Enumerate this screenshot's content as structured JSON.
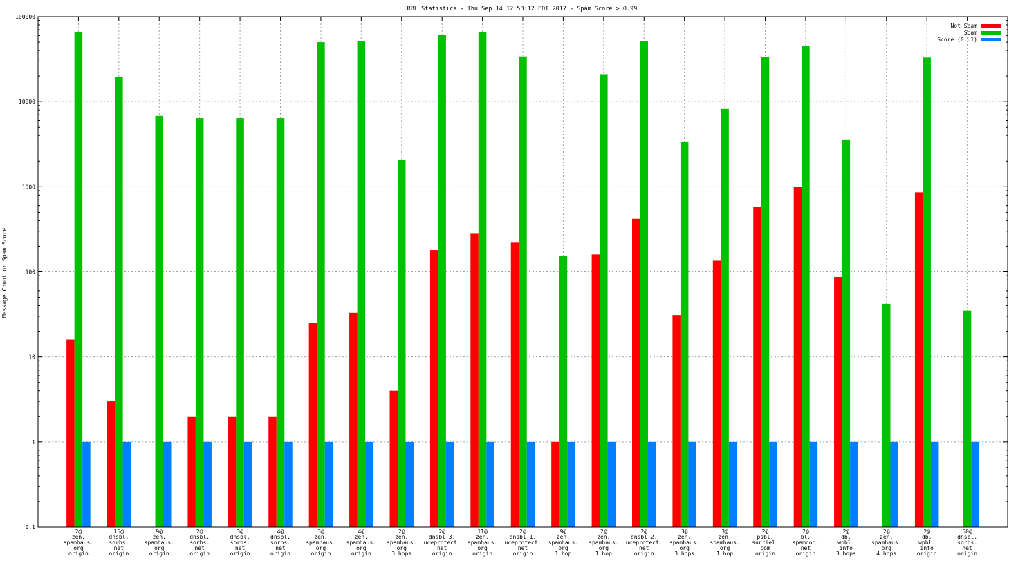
{
  "chart_data": {
    "type": "bar",
    "title": "RBL Statistics - Thu Sep 14 12:58:12 EDT 2017 - Spam Score > 0.99",
    "ylabel": "Message Count or Spam Score",
    "xlabel": "",
    "yscale": "log",
    "ylim": [
      0.1,
      100000
    ],
    "yticks": [
      {
        "value": 0.1,
        "label": "0.1"
      },
      {
        "value": 1,
        "label": "1"
      },
      {
        "value": 10,
        "label": "10"
      },
      {
        "value": 100,
        "label": "100"
      },
      {
        "value": 1000,
        "label": "1000"
      },
      {
        "value": 10000,
        "label": "10000"
      },
      {
        "value": 100000,
        "label": "100000"
      }
    ],
    "grid": true,
    "legend_position": "top-right",
    "categories": [
      [
        "2@",
        "zen.",
        "spamhaus.",
        "org",
        "origin"
      ],
      [
        "15@",
        "dnsbl.",
        "sorbs.",
        "net",
        "origin"
      ],
      [
        "9@",
        "zen.",
        "spamhaus.",
        "org",
        "origin"
      ],
      [
        "2@",
        "dnsbl.",
        "sorbs.",
        "net",
        "origin"
      ],
      [
        "3@",
        "dnsbl.",
        "sorbs.",
        "net",
        "origin"
      ],
      [
        "4@",
        "dnsbl.",
        "sorbs.",
        "net",
        "origin"
      ],
      [
        "3@",
        "zen.",
        "spamhaus.",
        "org",
        "origin"
      ],
      [
        "4@",
        "zen.",
        "spamhaus.",
        "org",
        "origin"
      ],
      [
        "2@",
        "zen.",
        "spamhaus.",
        "org",
        "3 hops"
      ],
      [
        "2@",
        "dnsbl-3.",
        "uceprotect.",
        "net",
        "origin"
      ],
      [
        "11@",
        "zen.",
        "spamhaus.",
        "org",
        "origin"
      ],
      [
        "2@",
        "dnsbl-1.",
        "uceprotect.",
        "net",
        "origin"
      ],
      [
        "9@",
        "zen.",
        "spamhaus.",
        "org",
        "1 hop"
      ],
      [
        "2@",
        "zen.",
        "spamhaus.",
        "org",
        "1 hop"
      ],
      [
        "2@",
        "dnsbl-2.",
        "uceprotect.",
        "net",
        "origin"
      ],
      [
        "3@",
        "zen.",
        "spamhaus.",
        "org",
        "3 hops"
      ],
      [
        "3@",
        "zen.",
        "spamhaus.",
        "org",
        "1 hop"
      ],
      [
        "2@",
        "psbl.",
        "surriel.",
        "com",
        "origin"
      ],
      [
        "2@",
        "bl.",
        "spamcop.",
        "net",
        "origin"
      ],
      [
        "2@",
        "db.",
        "wpbl.",
        "info",
        "3 hops"
      ],
      [
        "2@",
        "zen.",
        "spamhaus.",
        "org",
        "4 hops"
      ],
      [
        "2@",
        "db.",
        "wpbl.",
        "info",
        "origin"
      ],
      [
        "50@",
        "dnsbl.",
        "sorbs.",
        "net",
        "origin"
      ]
    ],
    "series": [
      {
        "name": "Not Spam",
        "color": "#ff0000",
        "values": [
          16,
          3,
          0,
          2,
          2,
          2,
          25,
          33,
          4,
          180,
          280,
          220,
          1,
          160,
          420,
          31,
          135,
          580,
          1000,
          87,
          0,
          860,
          0
        ]
      },
      {
        "name": "Spam",
        "color": "#00c000",
        "values": [
          66000,
          19500,
          6800,
          6400,
          6400,
          6400,
          50000,
          52000,
          2050,
          61000,
          65000,
          34000,
          155,
          21000,
          52000,
          3400,
          8200,
          33500,
          45500,
          3600,
          42,
          33000,
          35
        ]
      },
      {
        "name": "Score (0..1)",
        "color": "#0080ff",
        "values": [
          1,
          1,
          1,
          1,
          1,
          1,
          1,
          1,
          1,
          1,
          1,
          1,
          1,
          1,
          1,
          1,
          1,
          1,
          1,
          1,
          1,
          1,
          1
        ]
      }
    ]
  }
}
